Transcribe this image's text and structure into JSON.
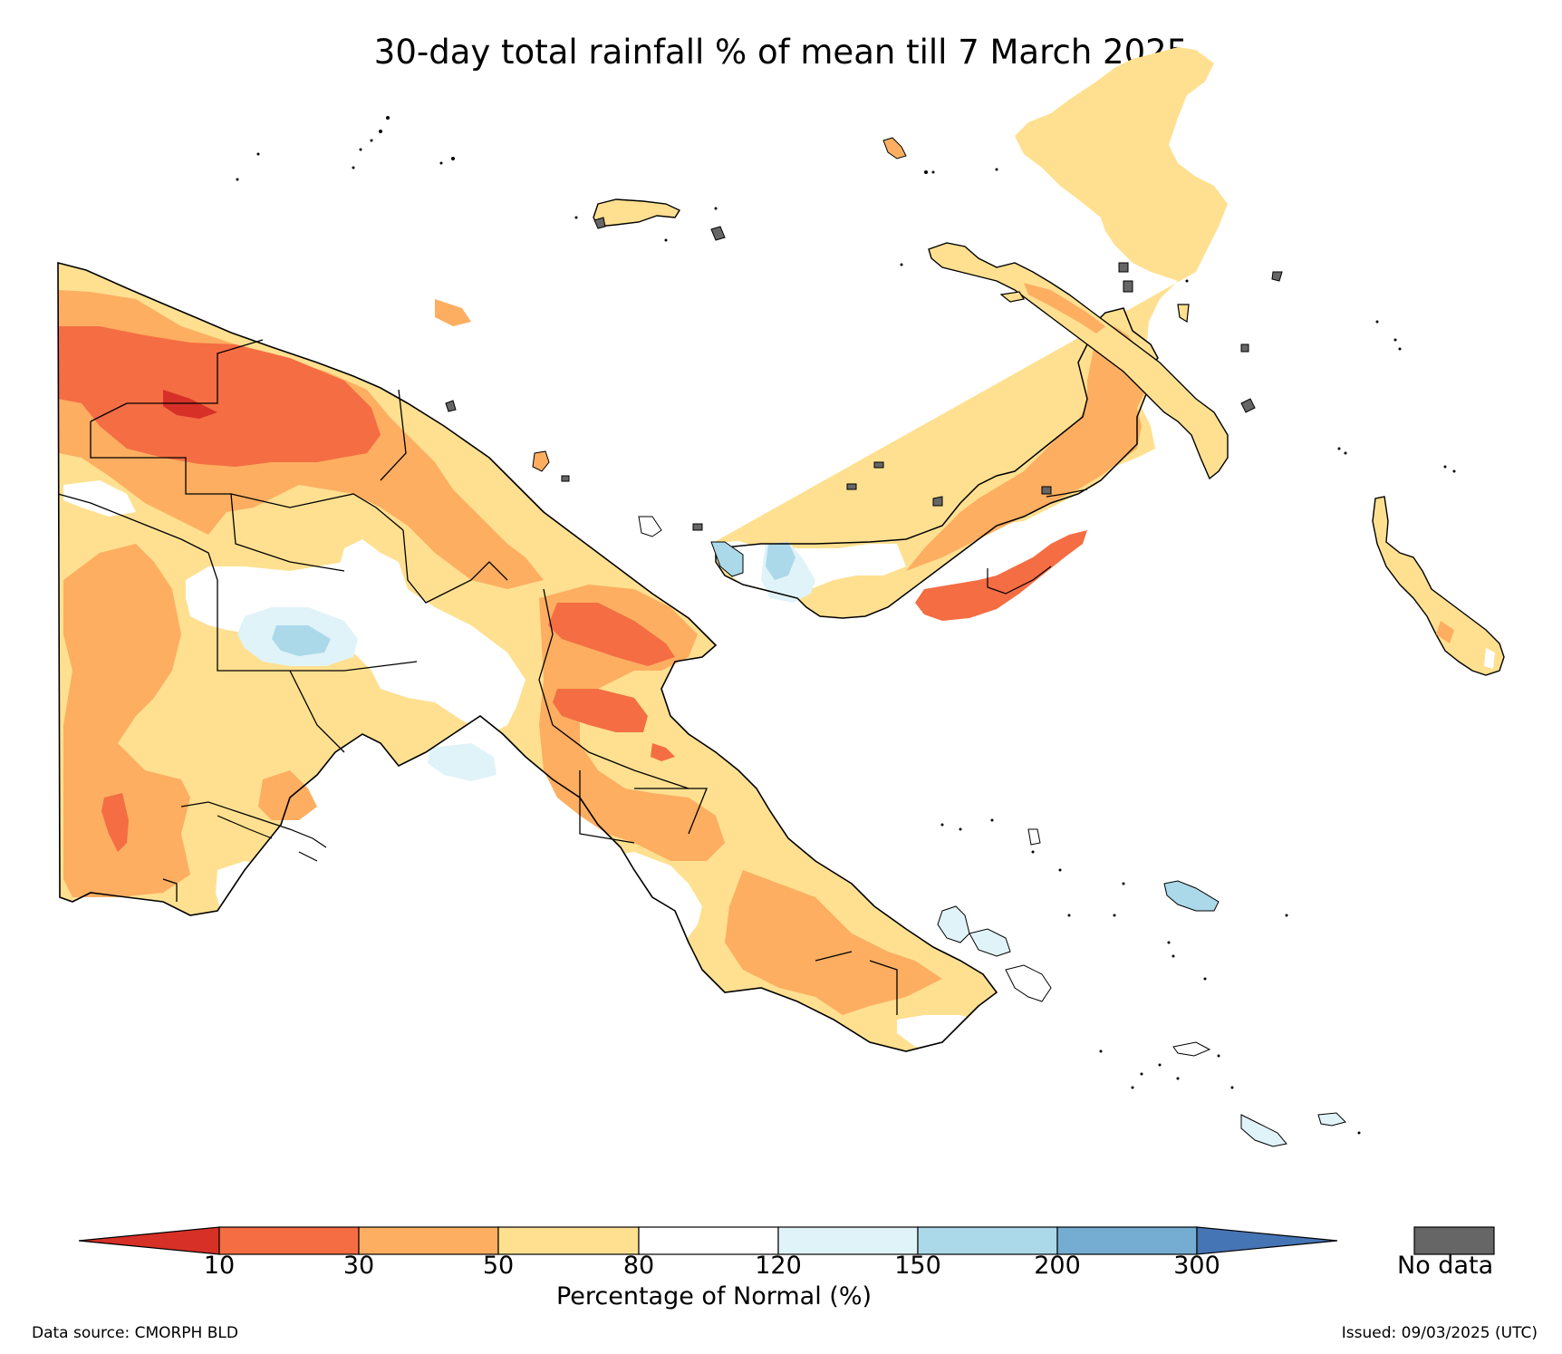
{
  "title": "30-day total rainfall % of mean till 7 March 2025",
  "colorbar": {
    "label": "Percentage of Normal (%)",
    "ticks": [
      "10",
      "30",
      "50",
      "80",
      "120",
      "150",
      "200",
      "300"
    ],
    "colors": {
      "lt10": "#d73027",
      "10-30": "#f46d43",
      "30-50": "#fdae61",
      "50-80": "#fee090",
      "80-120": "#ffffff",
      "120-150": "#e0f3f8",
      "150-200": "#abd9e9",
      "200-300": "#74add1",
      "gt300": "#4575b4"
    },
    "nodata_label": "No data",
    "nodata_color": "#666666"
  },
  "footer": {
    "source": "Data source: CMORPH BLD",
    "issued": "Issued: 09/03/2025 (UTC)"
  }
}
